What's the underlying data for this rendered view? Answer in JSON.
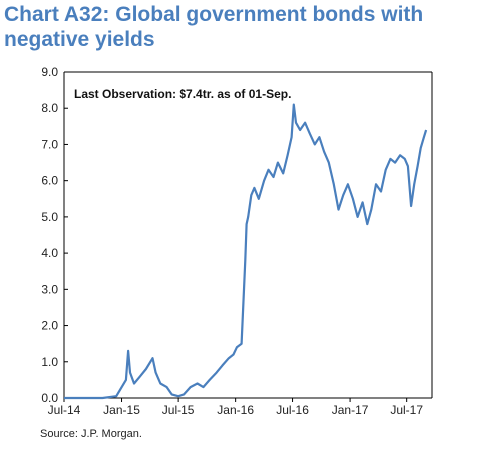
{
  "chart_data": {
    "type": "line",
    "title": "Chart A32: Global government bonds with negative yields",
    "annotation": "Last Observation:  $7.4tr. as of 01-Sep.",
    "source": "Source: J.P. Morgan.",
    "xlabel": "",
    "ylabel": "",
    "ylim": [
      0,
      9
    ],
    "yticks": [
      "0.0",
      "1.0",
      "2.0",
      "3.0",
      "4.0",
      "5.0",
      "6.0",
      "7.0",
      "8.0",
      "9.0"
    ],
    "xlim": [
      "2014-07-01",
      "2017-09-20"
    ],
    "xticks": [
      {
        "date": "2014-07-01",
        "label": "Jul-14"
      },
      {
        "date": "2015-01-01",
        "label": "Jan-15"
      },
      {
        "date": "2015-07-01",
        "label": "Jul-15"
      },
      {
        "date": "2016-01-01",
        "label": "Jan-16"
      },
      {
        "date": "2016-07-01",
        "label": "Jul-16"
      },
      {
        "date": "2017-01-01",
        "label": "Jan-17"
      },
      {
        "date": "2017-07-01",
        "label": "Jul-17"
      }
    ],
    "grid": false,
    "line_color": "#4a7fbd",
    "series": [
      {
        "x": [
          "2014-07-01",
          "2014-09-01",
          "2014-11-01",
          "2014-12-15",
          "2015-01-15",
          "2015-01-22",
          "2015-01-28",
          "2015-02-10",
          "2015-03-01",
          "2015-03-20",
          "2015-04-10",
          "2015-04-20",
          "2015-05-05",
          "2015-05-25",
          "2015-06-10",
          "2015-07-01",
          "2015-07-20",
          "2015-08-10",
          "2015-09-01",
          "2015-09-20",
          "2015-10-10",
          "2015-11-01",
          "2015-11-20",
          "2015-12-10",
          "2015-12-25",
          "2016-01-05",
          "2016-01-20",
          "2016-02-01",
          "2016-02-05",
          "2016-02-10",
          "2016-02-20",
          "2016-03-01",
          "2016-03-15",
          "2016-04-01",
          "2016-04-15",
          "2016-05-01",
          "2016-05-15",
          "2016-06-01",
          "2016-06-15",
          "2016-06-28",
          "2016-07-05",
          "2016-07-12",
          "2016-07-25",
          "2016-08-10",
          "2016-08-25",
          "2016-09-10",
          "2016-09-25",
          "2016-10-10",
          "2016-10-25",
          "2016-11-10",
          "2016-11-25",
          "2016-12-10",
          "2016-12-25",
          "2017-01-10",
          "2017-01-25",
          "2017-02-10",
          "2017-02-25",
          "2017-03-10",
          "2017-03-25",
          "2017-04-10",
          "2017-04-25",
          "2017-05-10",
          "2017-05-25",
          "2017-06-10",
          "2017-06-25",
          "2017-07-05",
          "2017-07-15",
          "2017-07-25",
          "2017-08-05",
          "2017-08-15",
          "2017-08-25",
          "2017-09-01"
        ],
        "values": [
          0.0,
          0.0,
          0.0,
          0.05,
          0.5,
          1.3,
          0.7,
          0.4,
          0.6,
          0.8,
          1.1,
          0.7,
          0.4,
          0.3,
          0.1,
          0.05,
          0.1,
          0.3,
          0.4,
          0.3,
          0.5,
          0.7,
          0.9,
          1.1,
          1.2,
          1.4,
          1.5,
          3.8,
          4.8,
          5.0,
          5.6,
          5.8,
          5.5,
          6.0,
          6.3,
          6.1,
          6.5,
          6.2,
          6.7,
          7.2,
          8.1,
          7.6,
          7.4,
          7.6,
          7.3,
          7.0,
          7.2,
          6.8,
          6.5,
          5.9,
          5.2,
          5.6,
          5.9,
          5.5,
          5.0,
          5.4,
          4.8,
          5.2,
          5.9,
          5.7,
          6.3,
          6.6,
          6.5,
          6.7,
          6.6,
          6.4,
          5.3,
          5.9,
          6.4,
          6.9,
          7.2,
          7.4
        ]
      }
    ]
  }
}
